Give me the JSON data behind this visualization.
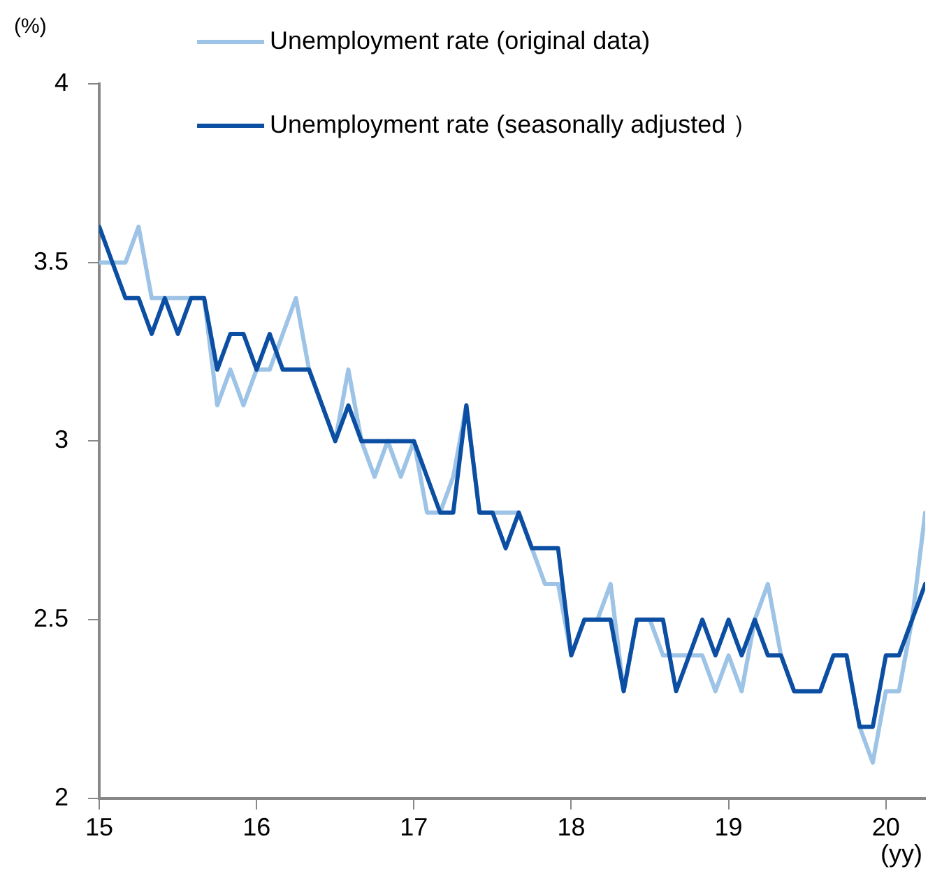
{
  "chart_data": {
    "type": "line",
    "ylabel": "(%)",
    "xlabel": "(yy)",
    "x": [
      "2015-01",
      "2015-02",
      "2015-03",
      "2015-04",
      "2015-05",
      "2015-06",
      "2015-07",
      "2015-08",
      "2015-09",
      "2015-10",
      "2015-11",
      "2015-12",
      "2016-01",
      "2016-02",
      "2016-03",
      "2016-04",
      "2016-05",
      "2016-06",
      "2016-07",
      "2016-08",
      "2016-09",
      "2016-10",
      "2016-11",
      "2016-12",
      "2017-01",
      "2017-02",
      "2017-03",
      "2017-04",
      "2017-05",
      "2017-06",
      "2017-07",
      "2017-08",
      "2017-09",
      "2017-10",
      "2017-11",
      "2017-12",
      "2018-01",
      "2018-02",
      "2018-03",
      "2018-04",
      "2018-05",
      "2018-06",
      "2018-07",
      "2018-08",
      "2018-09",
      "2018-10",
      "2018-11",
      "2018-12",
      "2019-01",
      "2019-02",
      "2019-03",
      "2019-04",
      "2019-05",
      "2019-06",
      "2019-07",
      "2019-08",
      "2019-09",
      "2019-10",
      "2019-11",
      "2019-12",
      "2020-01",
      "2020-02",
      "2020-03",
      "2020-04"
    ],
    "series": [
      {
        "name": "Unemployment rate (original data)",
        "color": "#9dc3e6",
        "values": [
          3.5,
          3.5,
          3.5,
          3.6,
          3.4,
          3.4,
          3.4,
          3.4,
          3.4,
          3.1,
          3.2,
          3.1,
          3.2,
          3.2,
          3.3,
          3.4,
          3.2,
          3.1,
          3.0,
          3.2,
          3.0,
          2.9,
          3.0,
          2.9,
          3.0,
          2.8,
          2.8,
          2.9,
          3.1,
          2.8,
          2.8,
          2.8,
          2.8,
          2.7,
          2.6,
          2.6,
          2.4,
          2.5,
          2.5,
          2.6,
          2.3,
          2.5,
          2.5,
          2.4,
          2.4,
          2.4,
          2.4,
          2.3,
          2.4,
          2.3,
          2.5,
          2.6,
          2.4,
          2.3,
          2.3,
          2.3,
          2.4,
          2.4,
          2.2,
          2.1,
          2.3,
          2.3,
          2.5,
          2.8
        ]
      },
      {
        "name": "Unemployment rate (seasonally adjusted ）",
        "color": "#0b4ea2",
        "values": [
          3.6,
          3.5,
          3.4,
          3.4,
          3.3,
          3.4,
          3.3,
          3.4,
          3.4,
          3.2,
          3.3,
          3.3,
          3.2,
          3.3,
          3.2,
          3.2,
          3.2,
          3.1,
          3.0,
          3.1,
          3.0,
          3.0,
          3.0,
          3.0,
          3.0,
          2.9,
          2.8,
          2.8,
          3.1,
          2.8,
          2.8,
          2.7,
          2.8,
          2.7,
          2.7,
          2.7,
          2.4,
          2.5,
          2.5,
          2.5,
          2.3,
          2.5,
          2.5,
          2.5,
          2.3,
          2.4,
          2.5,
          2.4,
          2.5,
          2.4,
          2.5,
          2.4,
          2.4,
          2.3,
          2.3,
          2.3,
          2.4,
          2.4,
          2.2,
          2.2,
          2.4,
          2.4,
          2.5,
          2.6
        ]
      }
    ],
    "xlim": [
      "2015-01",
      "2020-04"
    ],
    "xticks": [
      {
        "value": "2015-01",
        "label": "15"
      },
      {
        "value": "2016-01",
        "label": "16"
      },
      {
        "value": "2017-01",
        "label": "17"
      },
      {
        "value": "2018-01",
        "label": "18"
      },
      {
        "value": "2019-01",
        "label": "19"
      },
      {
        "value": "2020-01",
        "label": "20"
      }
    ],
    "ylim": [
      2,
      4
    ],
    "yticks": [
      2,
      {
        "value": 2.5,
        "label": "2.5"
      },
      3,
      {
        "value": 3.5,
        "label": "3.5"
      },
      4
    ],
    "legend": "top",
    "marker": "none",
    "line_style": "solid",
    "grid": false
  }
}
